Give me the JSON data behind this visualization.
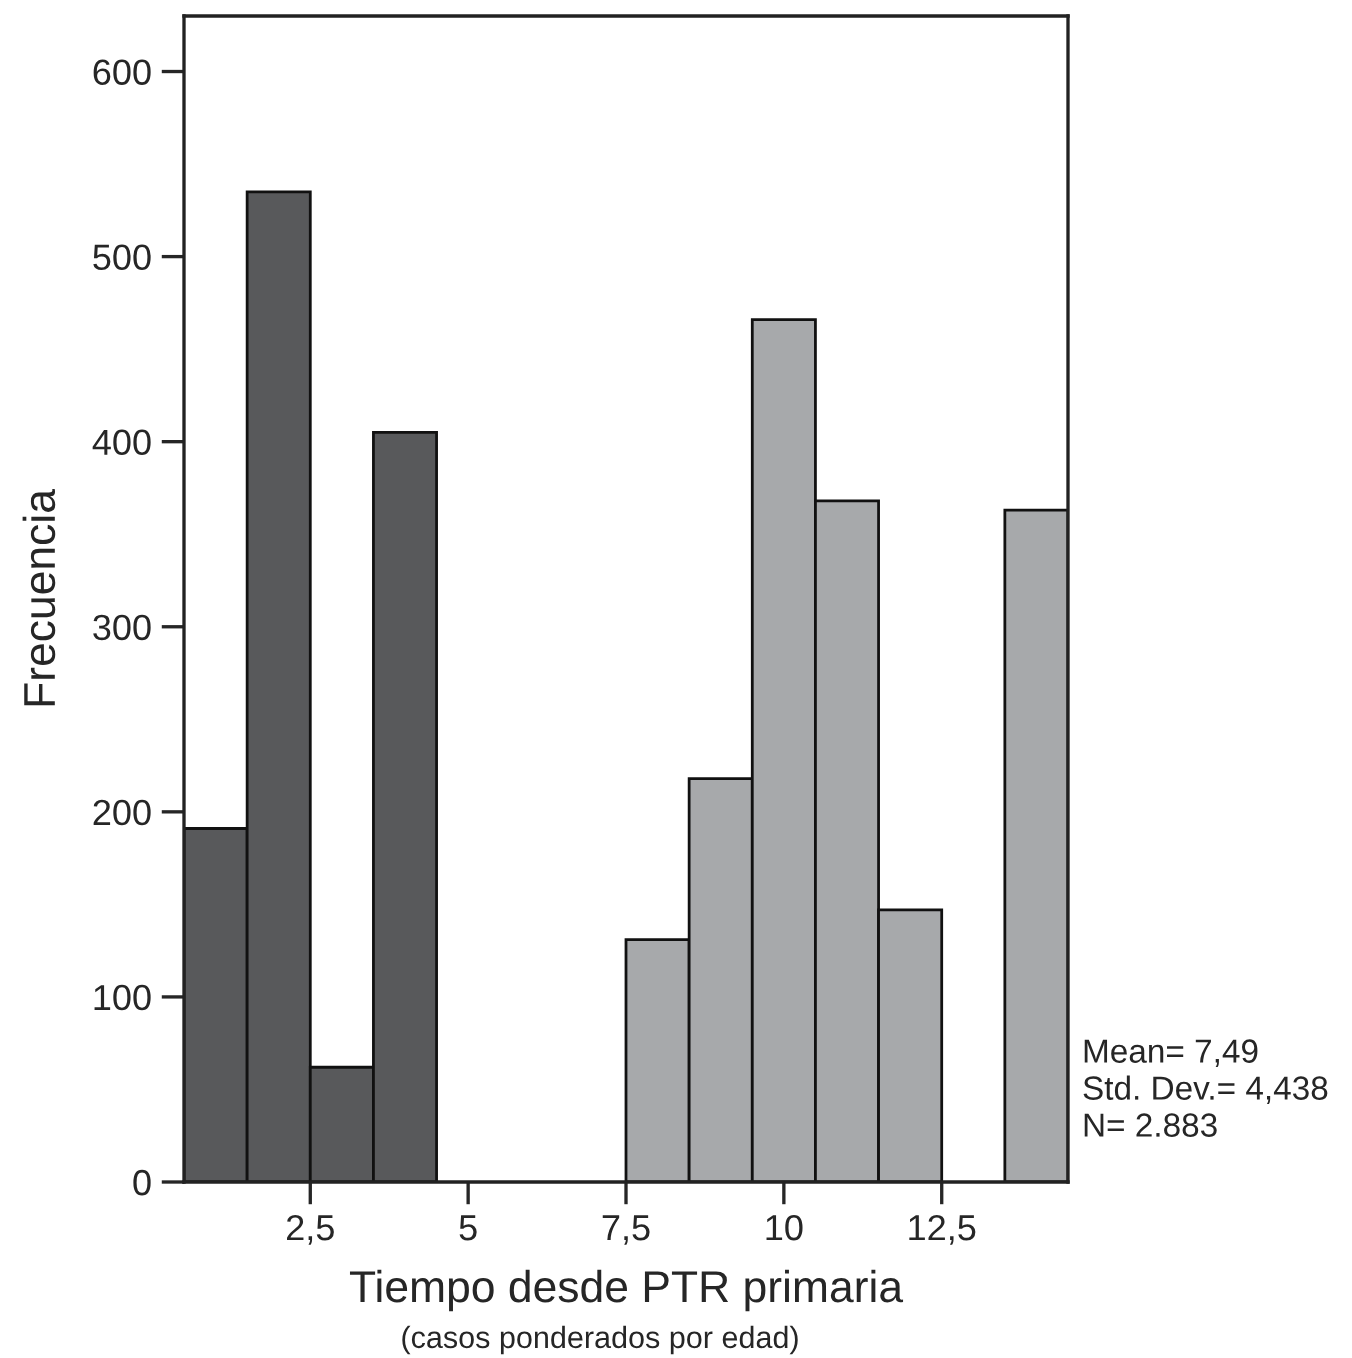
{
  "chart_data": {
    "type": "histogram",
    "xlabel": "Tiempo desde PTR primaria",
    "ylabel": "Frecuencia",
    "bins": [
      0.5,
      1.5,
      2.5,
      3.5,
      4.5,
      5.5,
      6.5,
      7.5,
      8.5,
      9.5,
      10.5,
      11.5,
      12.5,
      13.5,
      14.5
    ],
    "values": [
      191,
      535,
      62,
      405,
      0,
      0,
      0,
      131,
      218,
      466,
      368,
      147,
      0,
      363
    ],
    "colors": [
      "#58595b",
      "#58595b",
      "#58595b",
      "#58595b",
      "#58595b",
      "#58595b",
      "#58595b",
      "#a7a9ab",
      "#a7a9ab",
      "#a7a9ab",
      "#a7a9ab",
      "#a7a9ab",
      "#a7a9ab",
      "#a7a9ab"
    ],
    "xlim": [
      0.5,
      14.5
    ],
    "ylim": [
      0,
      630
    ],
    "xticks": [
      {
        "value": 2.5,
        "label": "2,5"
      },
      5,
      {
        "value": 7.5,
        "label": "7,5"
      },
      10,
      {
        "value": 12.5,
        "label": "12,5"
      }
    ],
    "yticks": [
      0,
      100,
      200,
      300,
      400,
      500,
      600
    ],
    "grid": false,
    "legend": false,
    "annotations": [
      "(casos ponderados por edad)",
      "Mean= 7,49",
      "Std. Dev.= 4,438",
      "N= 2.883"
    ]
  }
}
